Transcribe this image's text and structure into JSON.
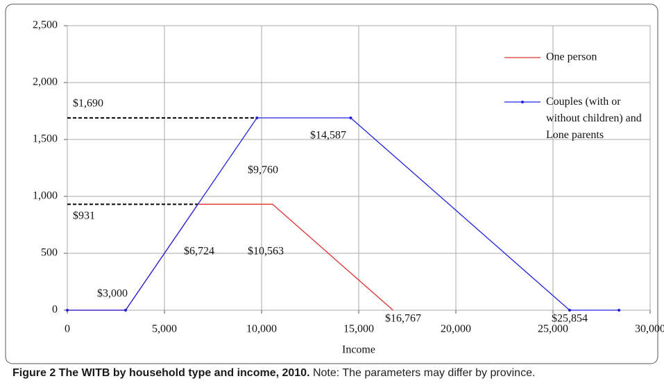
{
  "chart_data": {
    "type": "line",
    "xlabel": "Income",
    "series": [
      {
        "name": "One person",
        "color": "#e03030",
        "x": [
          0,
          3000,
          6724,
          10563,
          16767
        ],
        "values": [
          0,
          0,
          931,
          931,
          0
        ],
        "markers": false
      },
      {
        "name": "Couples (with or without children) and Lone parents",
        "color": "#2020e0",
        "x": [
          0,
          3000,
          9760,
          14587,
          25854,
          28400
        ],
        "values": [
          0,
          0,
          1690,
          1690,
          0,
          0
        ],
        "markers": true
      }
    ],
    "xlim": [
      0,
      30000
    ],
    "xticks": [
      0,
      {
        "value": 5000,
        "label": "5,000"
      },
      {
        "value": 10000,
        "label": "10,000"
      },
      {
        "value": 15000,
        "label": "15,000"
      },
      {
        "value": 20000,
        "label": "20,000"
      },
      {
        "value": 25000,
        "label": "25,000"
      },
      {
        "value": 30000,
        "label": "30,000"
      }
    ],
    "ylim": [
      0,
      2500
    ],
    "yticks": [
      0,
      500,
      {
        "value": 1000,
        "label": "1,000"
      },
      {
        "value": 1500,
        "label": "1,500"
      },
      {
        "value": 2000,
        "label": "2,000"
      },
      {
        "value": 2500,
        "label": "2,500"
      }
    ],
    "grid": true,
    "annotations": [
      "$1,690",
      "$931",
      "$3,000",
      "$6,724",
      "$10,563",
      "$9,760",
      "$14,587",
      "$16,767",
      "$25,854"
    ]
  },
  "caption": {
    "title": "Figure 2 The WITB by household type and income, 2010.",
    "note": "Note: The parameters may differ by province."
  }
}
